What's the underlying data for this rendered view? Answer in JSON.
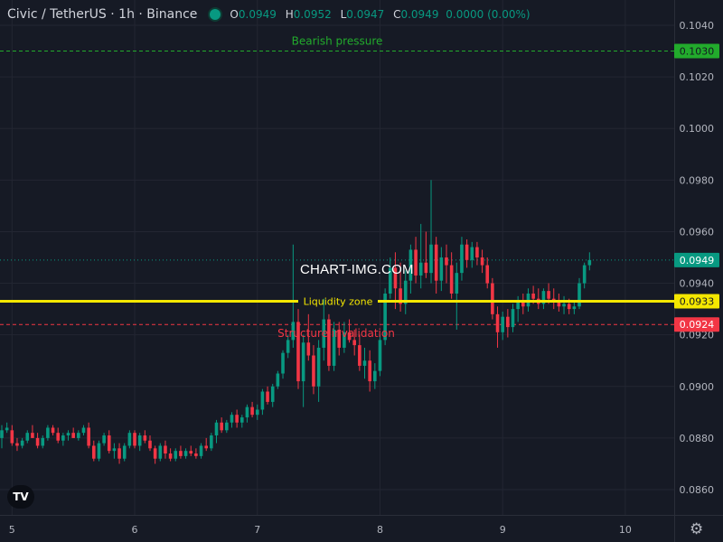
{
  "header": {
    "symbol": "Civic / TetherUS · 1h · Binance",
    "o_label": "O",
    "o_value": "0.0949",
    "h_label": "H",
    "h_value": "0.0952",
    "l_label": "L",
    "l_value": "0.0947",
    "c_label": "C",
    "c_value": "0.0949",
    "change": "0.0000 (0.00%)"
  },
  "watermark": "CHART-IMG.COM",
  "logo_text": "TV",
  "colors": {
    "background": "#161a25",
    "up": "#089981",
    "down": "#f23645",
    "grid": "#232632",
    "axis_text": "#b2b5be",
    "bearish_line": "#22ab2c",
    "liquidity_line": "#f4e700",
    "structure_line": "#f23645"
  },
  "icons": {
    "logo": "tradingview-logo-icon",
    "settings": "gear-icon"
  },
  "chart_data": {
    "type": "candlestick",
    "title": "Civic / TetherUS · 1h · Binance",
    "ylim": [
      0.0845,
      0.1049
    ],
    "y_ticks": [
      "0.1040",
      "0.1020",
      "0.1000",
      "0.0980",
      "0.0960",
      "0.0940",
      "0.0920",
      "0.0900",
      "0.0880",
      "0.0860"
    ],
    "x_ticks": [
      {
        "label": "5",
        "t": 2
      },
      {
        "label": "6",
        "t": 26
      },
      {
        "label": "7",
        "t": 50
      },
      {
        "label": "8",
        "t": 74
      },
      {
        "label": "9",
        "t": 98
      },
      {
        "label": "10",
        "t": 122
      }
    ],
    "grid": true,
    "last_price": {
      "value": 0.0949,
      "label": "0.0949"
    },
    "annotations": [
      {
        "name": "bearish-pressure",
        "text": "Bearish pressure",
        "value": 0.103,
        "label": "0.1030",
        "style": "dashed",
        "color": "#22ab2c"
      },
      {
        "name": "liquidity-zone",
        "text": "Liquidity zone",
        "value": 0.0933,
        "label": "0.0933",
        "style": "solid",
        "color": "#f4e700"
      },
      {
        "name": "structure-invalidation",
        "text": "Structure invalidation",
        "value": 0.0924,
        "label": "0.0924",
        "style": "dashed",
        "color": "#f23645"
      }
    ],
    "candles": [
      [
        0.088,
        0.0885,
        0.0876,
        0.0883
      ],
      [
        0.0883,
        0.0886,
        0.0882,
        0.0884
      ],
      [
        0.0883,
        0.0885,
        0.0877,
        0.0878
      ],
      [
        0.0878,
        0.088,
        0.0875,
        0.0877
      ],
      [
        0.0877,
        0.088,
        0.0876,
        0.0879
      ],
      [
        0.0879,
        0.0883,
        0.0878,
        0.0882
      ],
      [
        0.0882,
        0.0885,
        0.088,
        0.088
      ],
      [
        0.088,
        0.0882,
        0.0876,
        0.0877
      ],
      [
        0.0877,
        0.0881,
        0.0876,
        0.088
      ],
      [
        0.088,
        0.0885,
        0.0879,
        0.0884
      ],
      [
        0.0884,
        0.0885,
        0.0881,
        0.0882
      ],
      [
        0.0882,
        0.0884,
        0.0878,
        0.0879
      ],
      [
        0.0879,
        0.0882,
        0.0877,
        0.0881
      ],
      [
        0.0881,
        0.0883,
        0.0879,
        0.0882
      ],
      [
        0.0882,
        0.0884,
        0.088,
        0.088
      ],
      [
        0.088,
        0.0883,
        0.0879,
        0.0882
      ],
      [
        0.0882,
        0.0885,
        0.0881,
        0.0884
      ],
      [
        0.0884,
        0.0886,
        0.0876,
        0.0877
      ],
      [
        0.0877,
        0.0879,
        0.0871,
        0.0872
      ],
      [
        0.0872,
        0.0879,
        0.0871,
        0.0878
      ],
      [
        0.0878,
        0.0882,
        0.0877,
        0.0881
      ],
      [
        0.0881,
        0.0883,
        0.0874,
        0.0875
      ],
      [
        0.0875,
        0.0878,
        0.0872,
        0.0876
      ],
      [
        0.0876,
        0.0878,
        0.087,
        0.0872
      ],
      [
        0.0872,
        0.0878,
        0.0871,
        0.0877
      ],
      [
        0.0877,
        0.0883,
        0.0876,
        0.0882
      ],
      [
        0.0882,
        0.0883,
        0.0876,
        0.0877
      ],
      [
        0.0877,
        0.0882,
        0.0875,
        0.0881
      ],
      [
        0.0881,
        0.0883,
        0.0878,
        0.0879
      ],
      [
        0.0879,
        0.0881,
        0.0875,
        0.0876
      ],
      [
        0.0876,
        0.0877,
        0.087,
        0.0872
      ],
      [
        0.0872,
        0.0878,
        0.0871,
        0.0877
      ],
      [
        0.0877,
        0.0879,
        0.0872,
        0.0874
      ],
      [
        0.0874,
        0.0876,
        0.0871,
        0.0872
      ],
      [
        0.0872,
        0.0876,
        0.0871,
        0.0875
      ],
      [
        0.0875,
        0.0877,
        0.0872,
        0.0873
      ],
      [
        0.0873,
        0.0876,
        0.0872,
        0.0875
      ],
      [
        0.0875,
        0.0877,
        0.0873,
        0.0874
      ],
      [
        0.0874,
        0.0876,
        0.0872,
        0.0873
      ],
      [
        0.0873,
        0.0878,
        0.0872,
        0.0877
      ],
      [
        0.0877,
        0.088,
        0.0875,
        0.0876
      ],
      [
        0.0876,
        0.0882,
        0.0875,
        0.0881
      ],
      [
        0.0881,
        0.0887,
        0.0878,
        0.0886
      ],
      [
        0.0886,
        0.0888,
        0.0882,
        0.0883
      ],
      [
        0.0883,
        0.0887,
        0.0882,
        0.0886
      ],
      [
        0.0886,
        0.089,
        0.0884,
        0.0889
      ],
      [
        0.0889,
        0.0891,
        0.0884,
        0.0886
      ],
      [
        0.0886,
        0.0889,
        0.0884,
        0.0888
      ],
      [
        0.0888,
        0.0893,
        0.0886,
        0.0892
      ],
      [
        0.0892,
        0.0894,
        0.0888,
        0.0889
      ],
      [
        0.0889,
        0.0893,
        0.0887,
        0.0891
      ],
      [
        0.0891,
        0.0899,
        0.0889,
        0.0898
      ],
      [
        0.0898,
        0.09,
        0.0893,
        0.0894
      ],
      [
        0.0894,
        0.0901,
        0.0892,
        0.09
      ],
      [
        0.09,
        0.0906,
        0.0899,
        0.0905
      ],
      [
        0.0905,
        0.0914,
        0.0903,
        0.0913
      ],
      [
        0.0913,
        0.092,
        0.0911,
        0.0918
      ],
      [
        0.0918,
        0.0955,
        0.0915,
        0.0925
      ],
      [
        0.0925,
        0.093,
        0.0899,
        0.0902
      ],
      [
        0.0902,
        0.092,
        0.0892,
        0.0917
      ],
      [
        0.0917,
        0.0928,
        0.091,
        0.0912
      ],
      [
        0.0912,
        0.0916,
        0.0897,
        0.09
      ],
      [
        0.09,
        0.0918,
        0.0894,
        0.0915
      ],
      [
        0.0915,
        0.0934,
        0.091,
        0.0926
      ],
      [
        0.0926,
        0.0928,
        0.0906,
        0.0908
      ],
      [
        0.0908,
        0.0925,
        0.0906,
        0.0922
      ],
      [
        0.0922,
        0.0925,
        0.0912,
        0.0915
      ],
      [
        0.0915,
        0.0925,
        0.0913,
        0.0921
      ],
      [
        0.0921,
        0.0926,
        0.0917,
        0.0918
      ],
      [
        0.0918,
        0.0922,
        0.0912,
        0.0916
      ],
      [
        0.0916,
        0.092,
        0.0906,
        0.0908
      ],
      [
        0.0908,
        0.0915,
        0.0903,
        0.091
      ],
      [
        0.091,
        0.0914,
        0.0898,
        0.0902
      ],
      [
        0.0902,
        0.0909,
        0.0899,
        0.0906
      ],
      [
        0.0906,
        0.092,
        0.0904,
        0.0918
      ],
      [
        0.0918,
        0.0938,
        0.0916,
        0.0936
      ],
      [
        0.0936,
        0.095,
        0.0934,
        0.0946
      ],
      [
        0.0946,
        0.0952,
        0.093,
        0.0938
      ],
      [
        0.0938,
        0.0948,
        0.0929,
        0.0932
      ],
      [
        0.0932,
        0.0945,
        0.0928,
        0.0941
      ],
      [
        0.0941,
        0.0955,
        0.0936,
        0.0953
      ],
      [
        0.0953,
        0.0958,
        0.094,
        0.0943
      ],
      [
        0.0943,
        0.0963,
        0.0938,
        0.0948
      ],
      [
        0.0948,
        0.096,
        0.0942,
        0.0944
      ],
      [
        0.0944,
        0.098,
        0.094,
        0.0955
      ],
      [
        0.0955,
        0.0958,
        0.0936,
        0.0941
      ],
      [
        0.0941,
        0.0954,
        0.0937,
        0.095
      ],
      [
        0.095,
        0.0955,
        0.094,
        0.0947
      ],
      [
        0.0947,
        0.0952,
        0.0934,
        0.0936
      ],
      [
        0.0936,
        0.0948,
        0.0922,
        0.0944
      ],
      [
        0.0944,
        0.0958,
        0.0941,
        0.0955
      ],
      [
        0.0955,
        0.0957,
        0.0946,
        0.0949
      ],
      [
        0.0949,
        0.0956,
        0.0946,
        0.0954
      ],
      [
        0.0954,
        0.0956,
        0.0947,
        0.095
      ],
      [
        0.095,
        0.0953,
        0.0944,
        0.0947
      ],
      [
        0.0947,
        0.095,
        0.0938,
        0.094
      ],
      [
        0.094,
        0.0942,
        0.0926,
        0.0928
      ],
      [
        0.0928,
        0.0931,
        0.0915,
        0.0921
      ],
      [
        0.0921,
        0.0929,
        0.0918,
        0.0927
      ],
      [
        0.0927,
        0.093,
        0.0919,
        0.0923
      ],
      [
        0.0923,
        0.0932,
        0.0921,
        0.093
      ],
      [
        0.093,
        0.0935,
        0.0925,
        0.0933
      ],
      [
        0.0933,
        0.0936,
        0.0928,
        0.0931
      ],
      [
        0.0931,
        0.0938,
        0.0929,
        0.0936
      ],
      [
        0.0936,
        0.0939,
        0.0932,
        0.0934
      ],
      [
        0.0934,
        0.0938,
        0.093,
        0.0932
      ],
      [
        0.0932,
        0.0938,
        0.093,
        0.0937
      ],
      [
        0.0937,
        0.094,
        0.0932,
        0.0934
      ],
      [
        0.0934,
        0.0938,
        0.093,
        0.0933
      ],
      [
        0.0933,
        0.0936,
        0.0929,
        0.0931
      ],
      [
        0.0931,
        0.0935,
        0.0928,
        0.0932
      ],
      [
        0.0932,
        0.0934,
        0.0928,
        0.093
      ],
      [
        0.093,
        0.0933,
        0.0928,
        0.0931
      ],
      [
        0.0931,
        0.0942,
        0.093,
        0.094
      ],
      [
        0.094,
        0.0948,
        0.0938,
        0.0947
      ],
      [
        0.0947,
        0.0952,
        0.0945,
        0.0949
      ]
    ]
  }
}
